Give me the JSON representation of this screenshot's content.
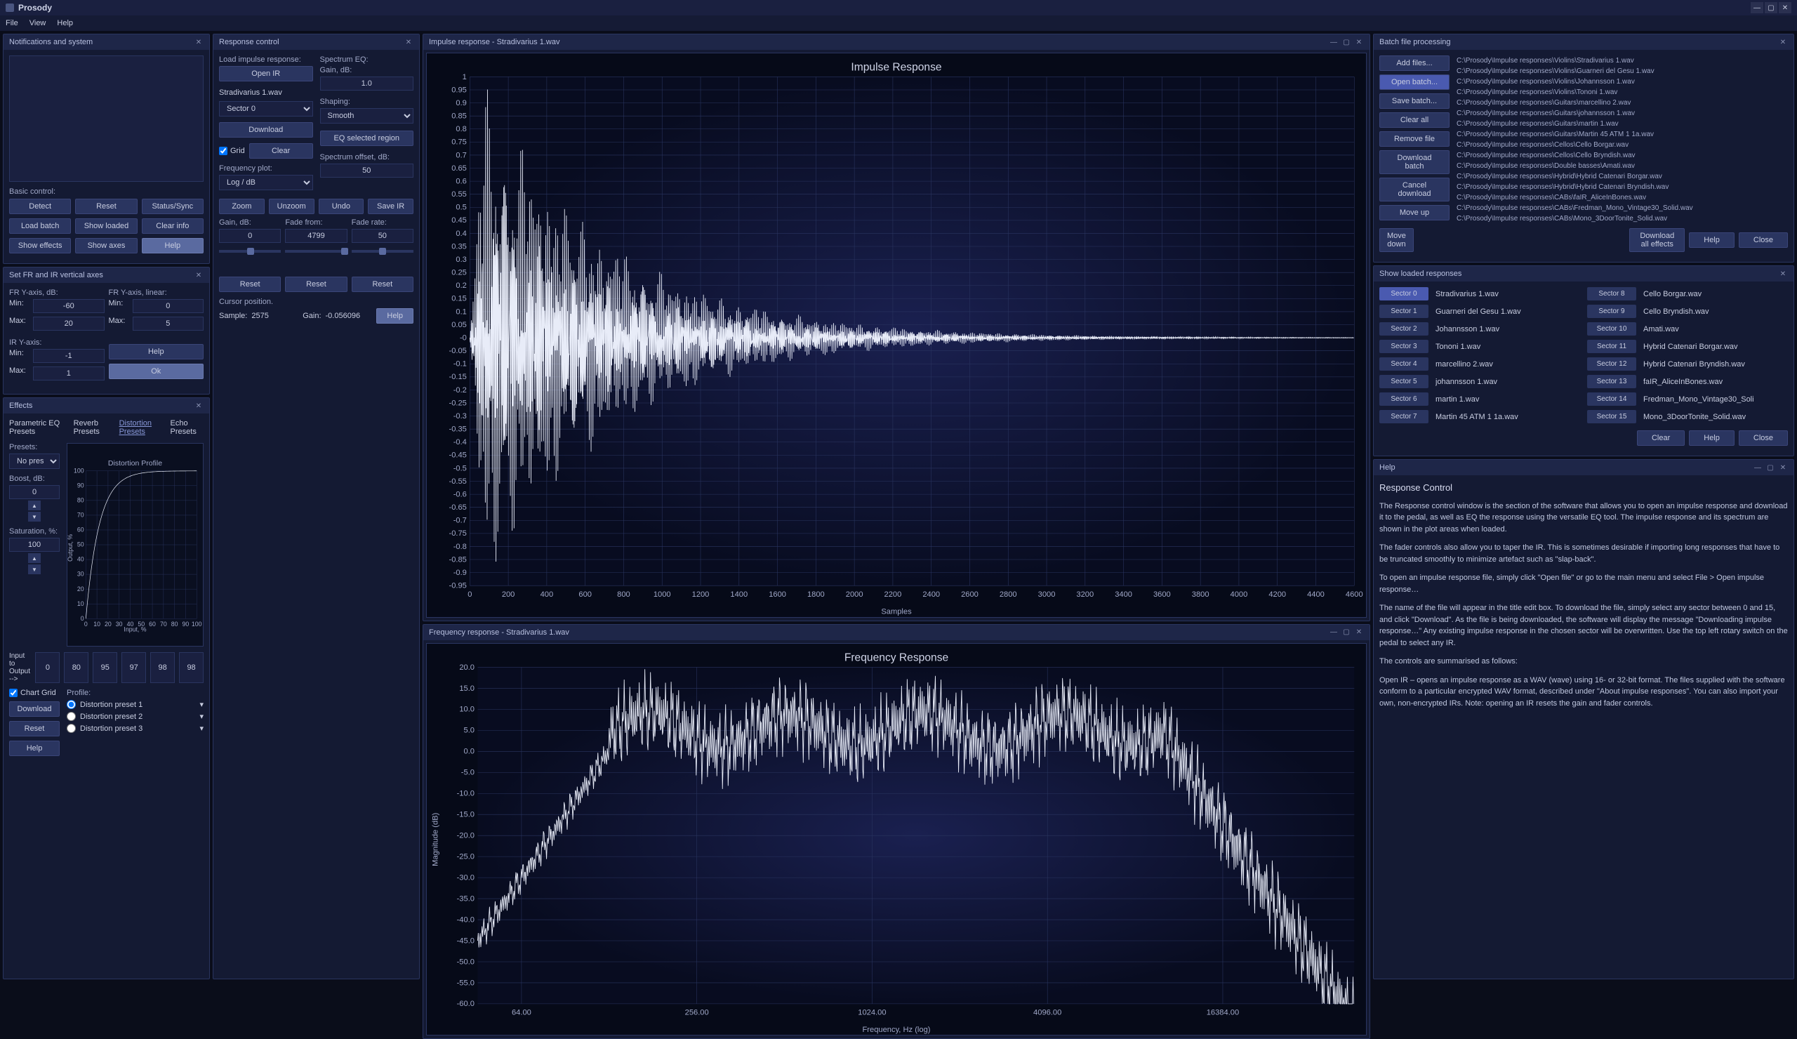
{
  "app": {
    "title": "Prosody"
  },
  "menubar": [
    "File",
    "View",
    "Help"
  ],
  "notifications": {
    "title": "Notifications and system",
    "basic_label": "Basic control:",
    "buttons": {
      "detect": "Detect",
      "reset": "Reset",
      "status": "Status/Sync",
      "load_batch": "Load batch",
      "show_loaded": "Show loaded",
      "clear_info": "Clear info",
      "show_effects": "Show effects",
      "show_axes": "Show axes",
      "help": "Help"
    }
  },
  "axes_panel": {
    "title": "Set FR and IR vertical axes",
    "fr_db_label": "FR Y-axis, dB:",
    "fr_lin_label": "FR Y-axis, linear:",
    "ir_label": "IR Y-axis:",
    "min_label": "Min:",
    "max_label": "Max:",
    "fr_db_min": "-60",
    "fr_db_max": "20",
    "fr_lin_min": "0",
    "fr_lin_max": "5",
    "ir_min": "-1",
    "ir_max": "1",
    "help": "Help",
    "ok": "Ok"
  },
  "effects": {
    "title": "Effects",
    "tabs": [
      "Parametric EQ Presets",
      "Reverb Presets",
      "Distortion Presets",
      "Echo Presets"
    ],
    "active_tab": 2,
    "presets_label": "Presets:",
    "preset_select": "No preset",
    "boost_label": "Boost, dB:",
    "boost_val": "0",
    "saturation_label": "Saturation, %:",
    "saturation_val": "100",
    "chart_title": "Distortion Profile",
    "chart_xlabel": "Input, %",
    "chart_ylabel": "Output, %",
    "chart_ticks": [
      "0",
      "10",
      "20",
      "30",
      "40",
      "50",
      "60",
      "70",
      "80",
      "90",
      "100"
    ],
    "chart_grid": "Chart Grid",
    "io_label": "Input to Output -->",
    "io_vals": [
      "0",
      "80",
      "95",
      "97",
      "98",
      "98"
    ],
    "profile_label": "Profile:",
    "distortion_presets": [
      "Distortion preset 1",
      "Distortion preset 2",
      "Distortion preset 3"
    ],
    "selected_preset": 0,
    "download": "Download",
    "reset": "Reset",
    "help": "Help"
  },
  "response_control": {
    "title": "Response control",
    "load_label": "Load impulse response:",
    "open_ir": "Open IR",
    "filename": "Stradivarius 1.wav",
    "sector_select": "Sector 0",
    "download": "Download",
    "grid_label": "Grid",
    "clear": "Clear",
    "freq_plot_label": "Frequency plot:",
    "freq_plot": "Log / dB",
    "spectrum_eq_label": "Spectrum EQ:",
    "gain_label": "Gain, dB:",
    "gain_val": "1.0",
    "shaping_label": "Shaping:",
    "shaping": "Smooth",
    "eq_region": "EQ selected region",
    "spec_offset_label": "Spectrum offset, dB:",
    "spec_offset": "50",
    "zoom": "Zoom",
    "unzoom": "Unzoom",
    "undo": "Undo",
    "save_ir": "Save IR",
    "gain_db_label": "Gain, dB:",
    "gain_db": "0",
    "fade_from_label": "Fade from:",
    "fade_from": "4799",
    "fade_rate_label": "Fade rate:",
    "fade_rate": "50",
    "reset": "Reset",
    "cursor_label": "Cursor position.",
    "sample_label": "Sample:",
    "sample_val": "2575",
    "cursor_gain_label": "Gain:",
    "cursor_gain_val": "-0.056096",
    "help": "Help"
  },
  "impulse_chart": {
    "title": "Impulse response - Stradivarius 1.wav",
    "chart_title": "Impulse Response",
    "xlabel": "Samples",
    "yticks": [
      "1",
      "0.95",
      "0.9",
      "0.85",
      "0.8",
      "0.75",
      "0.7",
      "0.65",
      "0.6",
      "0.55",
      "0.5",
      "0.45",
      "0.4",
      "0.35",
      "0.3",
      "0.25",
      "0.2",
      "0.15",
      "0.1",
      "0.05",
      "-0",
      "-0.05",
      "-0.1",
      "-0.15",
      "-0.2",
      "-0.25",
      "-0.3",
      "-0.35",
      "-0.4",
      "-0.45",
      "-0.5",
      "-0.55",
      "-0.6",
      "-0.65",
      "-0.7",
      "-0.75",
      "-0.8",
      "-0.85",
      "-0.9",
      "-0.95"
    ],
    "xticks": [
      "0",
      "200",
      "400",
      "600",
      "800",
      "1000",
      "1200",
      "1400",
      "1600",
      "1800",
      "2000",
      "2200",
      "2400",
      "2600",
      "2800",
      "3000",
      "3200",
      "3400",
      "3600",
      "3800",
      "4000",
      "4200",
      "4400",
      "4600"
    ],
    "bg": "#0a0f20",
    "line_color": "#e8ecf8",
    "grid_color": "#1a2548"
  },
  "freq_chart": {
    "title": "Frequency response - Stradivarius 1.wav",
    "chart_title": "Frequency Response",
    "xlabel": "Frequency, Hz (log)",
    "ylabel": "Magnitude (dB)",
    "yticks": [
      "20.0",
      "15.0",
      "10.0",
      "5.0",
      "0.0",
      "-5.0",
      "-10.0",
      "-15.0",
      "-20.0",
      "-25.0",
      "-30.0",
      "-35.0",
      "-40.0",
      "-45.0",
      "-50.0",
      "-55.0",
      "-60.0"
    ],
    "xticks": [
      "64.00",
      "256.00",
      "1024.00",
      "4096.00",
      "16384.00"
    ],
    "bg": "#0a0f20",
    "line_color": "#e8ecf8",
    "grid_color": "#1a2548"
  },
  "batch": {
    "title": "Batch file processing",
    "buttons": {
      "add": "Add files...",
      "open": "Open batch...",
      "save": "Save batch...",
      "clear": "Clear all",
      "remove": "Remove file",
      "download": "Download batch",
      "cancel": "Cancel download",
      "up": "Move up",
      "down": "Move down",
      "dl_effects": "Download all effects",
      "help": "Help",
      "close": "Close"
    },
    "files": [
      "C:\\Prosody\\Impulse responses\\Violins\\Stradivarius 1.wav",
      "C:\\Prosody\\Impulse responses\\Violins\\Guarneri del Gesu 1.wav",
      "C:\\Prosody\\Impulse responses\\Violins\\Johannsson 1.wav",
      "C:\\Prosody\\Impulse responses\\Violins\\Tononi 1.wav",
      "C:\\Prosody\\Impulse responses\\Guitars\\marcellino 2.wav",
      "C:\\Prosody\\Impulse responses\\Guitars\\johannsson 1.wav",
      "C:\\Prosody\\Impulse responses\\Guitars\\martin 1.wav",
      "C:\\Prosody\\Impulse responses\\Guitars\\Martin 45 ATM 1 1a.wav",
      "C:\\Prosody\\Impulse responses\\Cellos\\Cello Borgar.wav",
      "C:\\Prosody\\Impulse responses\\Cellos\\Cello Bryndish.wav",
      "C:\\Prosody\\Impulse responses\\Double basses\\Amati.wav",
      "C:\\Prosody\\Impulse responses\\Hybrid\\Hybrid Catenari Borgar.wav",
      "C:\\Prosody\\Impulse responses\\Hybrid\\Hybrid Catenari Bryndish.wav",
      "C:\\Prosody\\Impulse responses\\CABs\\faIR_AliceInBones.wav",
      "C:\\Prosody\\Impulse responses\\CABs\\Fredman_Mono_Vintage30_Solid.wav",
      "C:\\Prosody\\Impulse responses\\CABs\\Mono_3DoorTonite_Solid.wav"
    ]
  },
  "loaded": {
    "title": "Show loaded responses",
    "sectors": [
      {
        "n": "Sector 0",
        "f": "Stradivarius 1.wav",
        "active": true
      },
      {
        "n": "Sector 1",
        "f": "Guarneri del Gesu 1.wav"
      },
      {
        "n": "Sector 2",
        "f": "Johannsson 1.wav"
      },
      {
        "n": "Sector 3",
        "f": "Tononi 1.wav"
      },
      {
        "n": "Sector 4",
        "f": "marcellino 2.wav"
      },
      {
        "n": "Sector 5",
        "f": "johannsson 1.wav"
      },
      {
        "n": "Sector 6",
        "f": "martin 1.wav"
      },
      {
        "n": "Sector 7",
        "f": "Martin 45 ATM 1 1a.wav"
      },
      {
        "n": "Sector 8",
        "f": "Cello Borgar.wav"
      },
      {
        "n": "Sector 9",
        "f": "Cello Bryndish.wav"
      },
      {
        "n": "Sector 10",
        "f": "Amati.wav"
      },
      {
        "n": "Sector 11",
        "f": "Hybrid Catenari Borgar.wav"
      },
      {
        "n": "Sector 12",
        "f": "Hybrid Catenari Bryndish.wav"
      },
      {
        "n": "Sector 13",
        "f": "faIR_AliceInBones.wav"
      },
      {
        "n": "Sector 14",
        "f": "Fredman_Mono_Vintage30_Soli"
      },
      {
        "n": "Sector 15",
        "f": "Mono_3DoorTonite_Solid.wav"
      }
    ],
    "clear": "Clear",
    "help": "Help",
    "close": "Close"
  },
  "help": {
    "title": "Help",
    "heading": "Response Control",
    "p1": "The Response control window is the section of the software that allows you to open an impulse response and download it to the pedal, as well as EQ the response using the versatile EQ tool. The impulse response and its spectrum are shown in the plot areas when loaded.",
    "p2": "The fader controls also allow you to taper the IR. This is sometimes desirable if importing long responses that have to be truncated smoothly to minimize artefact such as \"slap-back\".",
    "p3": "To open an impulse response file, simply click \"Open file\" or go to the main menu and select File > Open impulse response…",
    "p4": "The name of the file will appear in the title edit box. To download the file, simply select any sector between 0 and 15, and click \"Download\". As the file is being downloaded, the software will display the message \"Downloading impulse response…\" Any existing impulse response in the chosen sector will be overwritten. Use the top left rotary switch on the pedal to select any IR.",
    "p5": "The controls are summarised as follows:",
    "p6": "Open IR – opens an impulse response as a WAV (wave) using 16- or 32-bit format. The files supplied with the software conform to a particular encrypted WAV format, described under \"About impulse responses\". You can also import your own, non-encrypted IRs. Note: opening an IR resets the gain and fader controls."
  }
}
